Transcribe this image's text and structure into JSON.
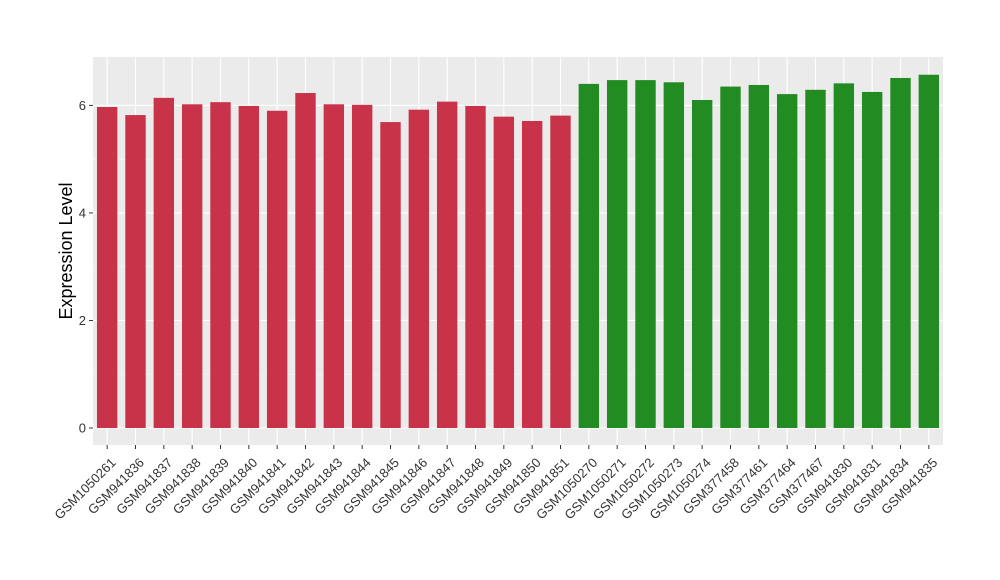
{
  "chart_data": {
    "type": "bar",
    "title": "",
    "xlabel": "",
    "ylabel": "Expression Level",
    "ylim": [
      0,
      6.9
    ],
    "yticks": [
      0,
      2,
      4,
      6
    ],
    "grid": true,
    "background_color": "#ebebeb",
    "categories": [
      "GSM1050261",
      "GSM941836",
      "GSM941837",
      "GSM941838",
      "GSM941839",
      "GSM941840",
      "GSM941841",
      "GSM941842",
      "GSM941843",
      "GSM941844",
      "GSM941845",
      "GSM941846",
      "GSM941847",
      "GSM941848",
      "GSM941849",
      "GSM941850",
      "GSM941851",
      "GSM1050270",
      "GSM1050271",
      "GSM1050272",
      "GSM1050273",
      "GSM1050274",
      "GSM377458",
      "GSM377461",
      "GSM377464",
      "GSM377467",
      "GSM941830",
      "GSM941831",
      "GSM941834",
      "GSM941835"
    ],
    "values": [
      5.97,
      5.82,
      6.14,
      6.02,
      6.06,
      5.99,
      5.9,
      6.23,
      6.02,
      6.01,
      5.69,
      5.92,
      6.07,
      5.99,
      5.79,
      5.71,
      5.81,
      6.4,
      6.47,
      6.47,
      6.43,
      6.1,
      6.35,
      6.38,
      6.21,
      6.29,
      6.41,
      6.25,
      6.51,
      6.57
    ],
    "groups": [
      {
        "count": 17,
        "color": "#c8334a"
      },
      {
        "count": 13,
        "color": "#228b22"
      }
    ]
  }
}
